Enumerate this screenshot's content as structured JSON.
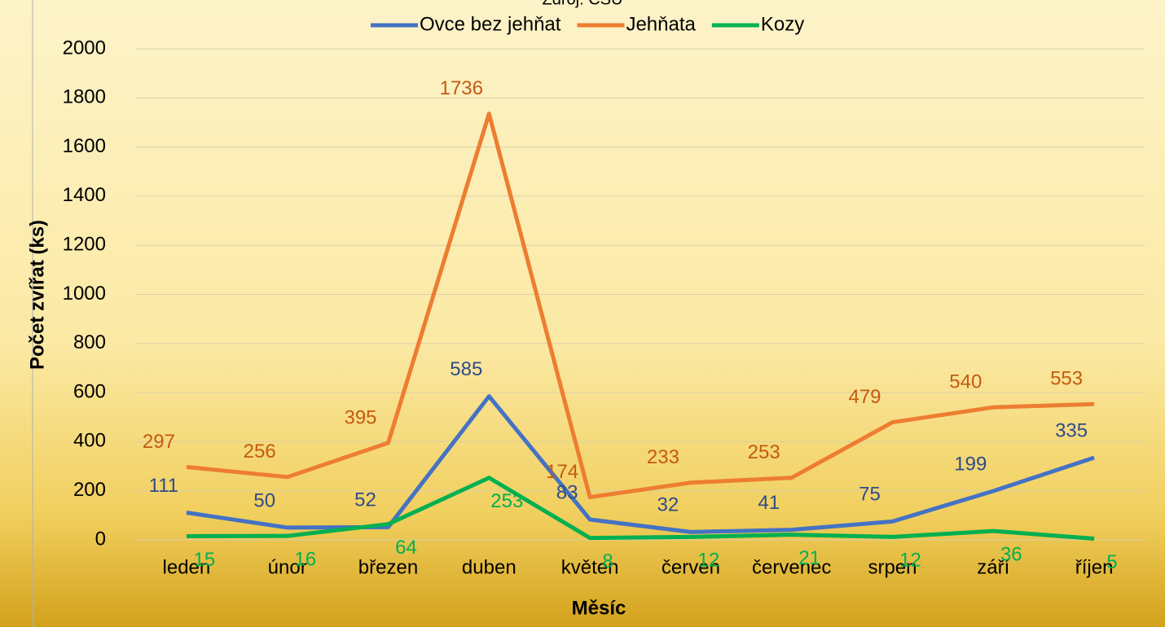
{
  "chart_data": {
    "type": "line",
    "subtitle": "Zdroj: ČSÚ",
    "xlabel": "Měsíc",
    "ylabel": "Počet zvířat (ks)",
    "categories": [
      "leden",
      "únor",
      "březen",
      "duben",
      "květen",
      "červen",
      "červenec",
      "srpen",
      "září",
      "říjen"
    ],
    "series": [
      {
        "name": "Ovce bez jehňat",
        "color": "#4472c4",
        "label_color": "#2f4b8a",
        "values": [
          111,
          50,
          52,
          585,
          83,
          32,
          41,
          75,
          199,
          335
        ]
      },
      {
        "name": "Jehňata",
        "color": "#ed7d31",
        "label_color": "#c55a11",
        "values": [
          297,
          256,
          395,
          1736,
          174,
          233,
          253,
          479,
          540,
          553
        ]
      },
      {
        "name": "Kozy",
        "color": "#00b050",
        "label_color": "#00b050",
        "values": [
          15,
          16,
          64,
          253,
          8,
          12,
          21,
          12,
          36,
          5
        ]
      }
    ],
    "ylim": [
      0,
      2000
    ],
    "yticks": [
      0,
      200,
      400,
      600,
      800,
      1000,
      1200,
      1400,
      1600,
      1800,
      2000
    ],
    "grid": true,
    "legend": "top"
  }
}
